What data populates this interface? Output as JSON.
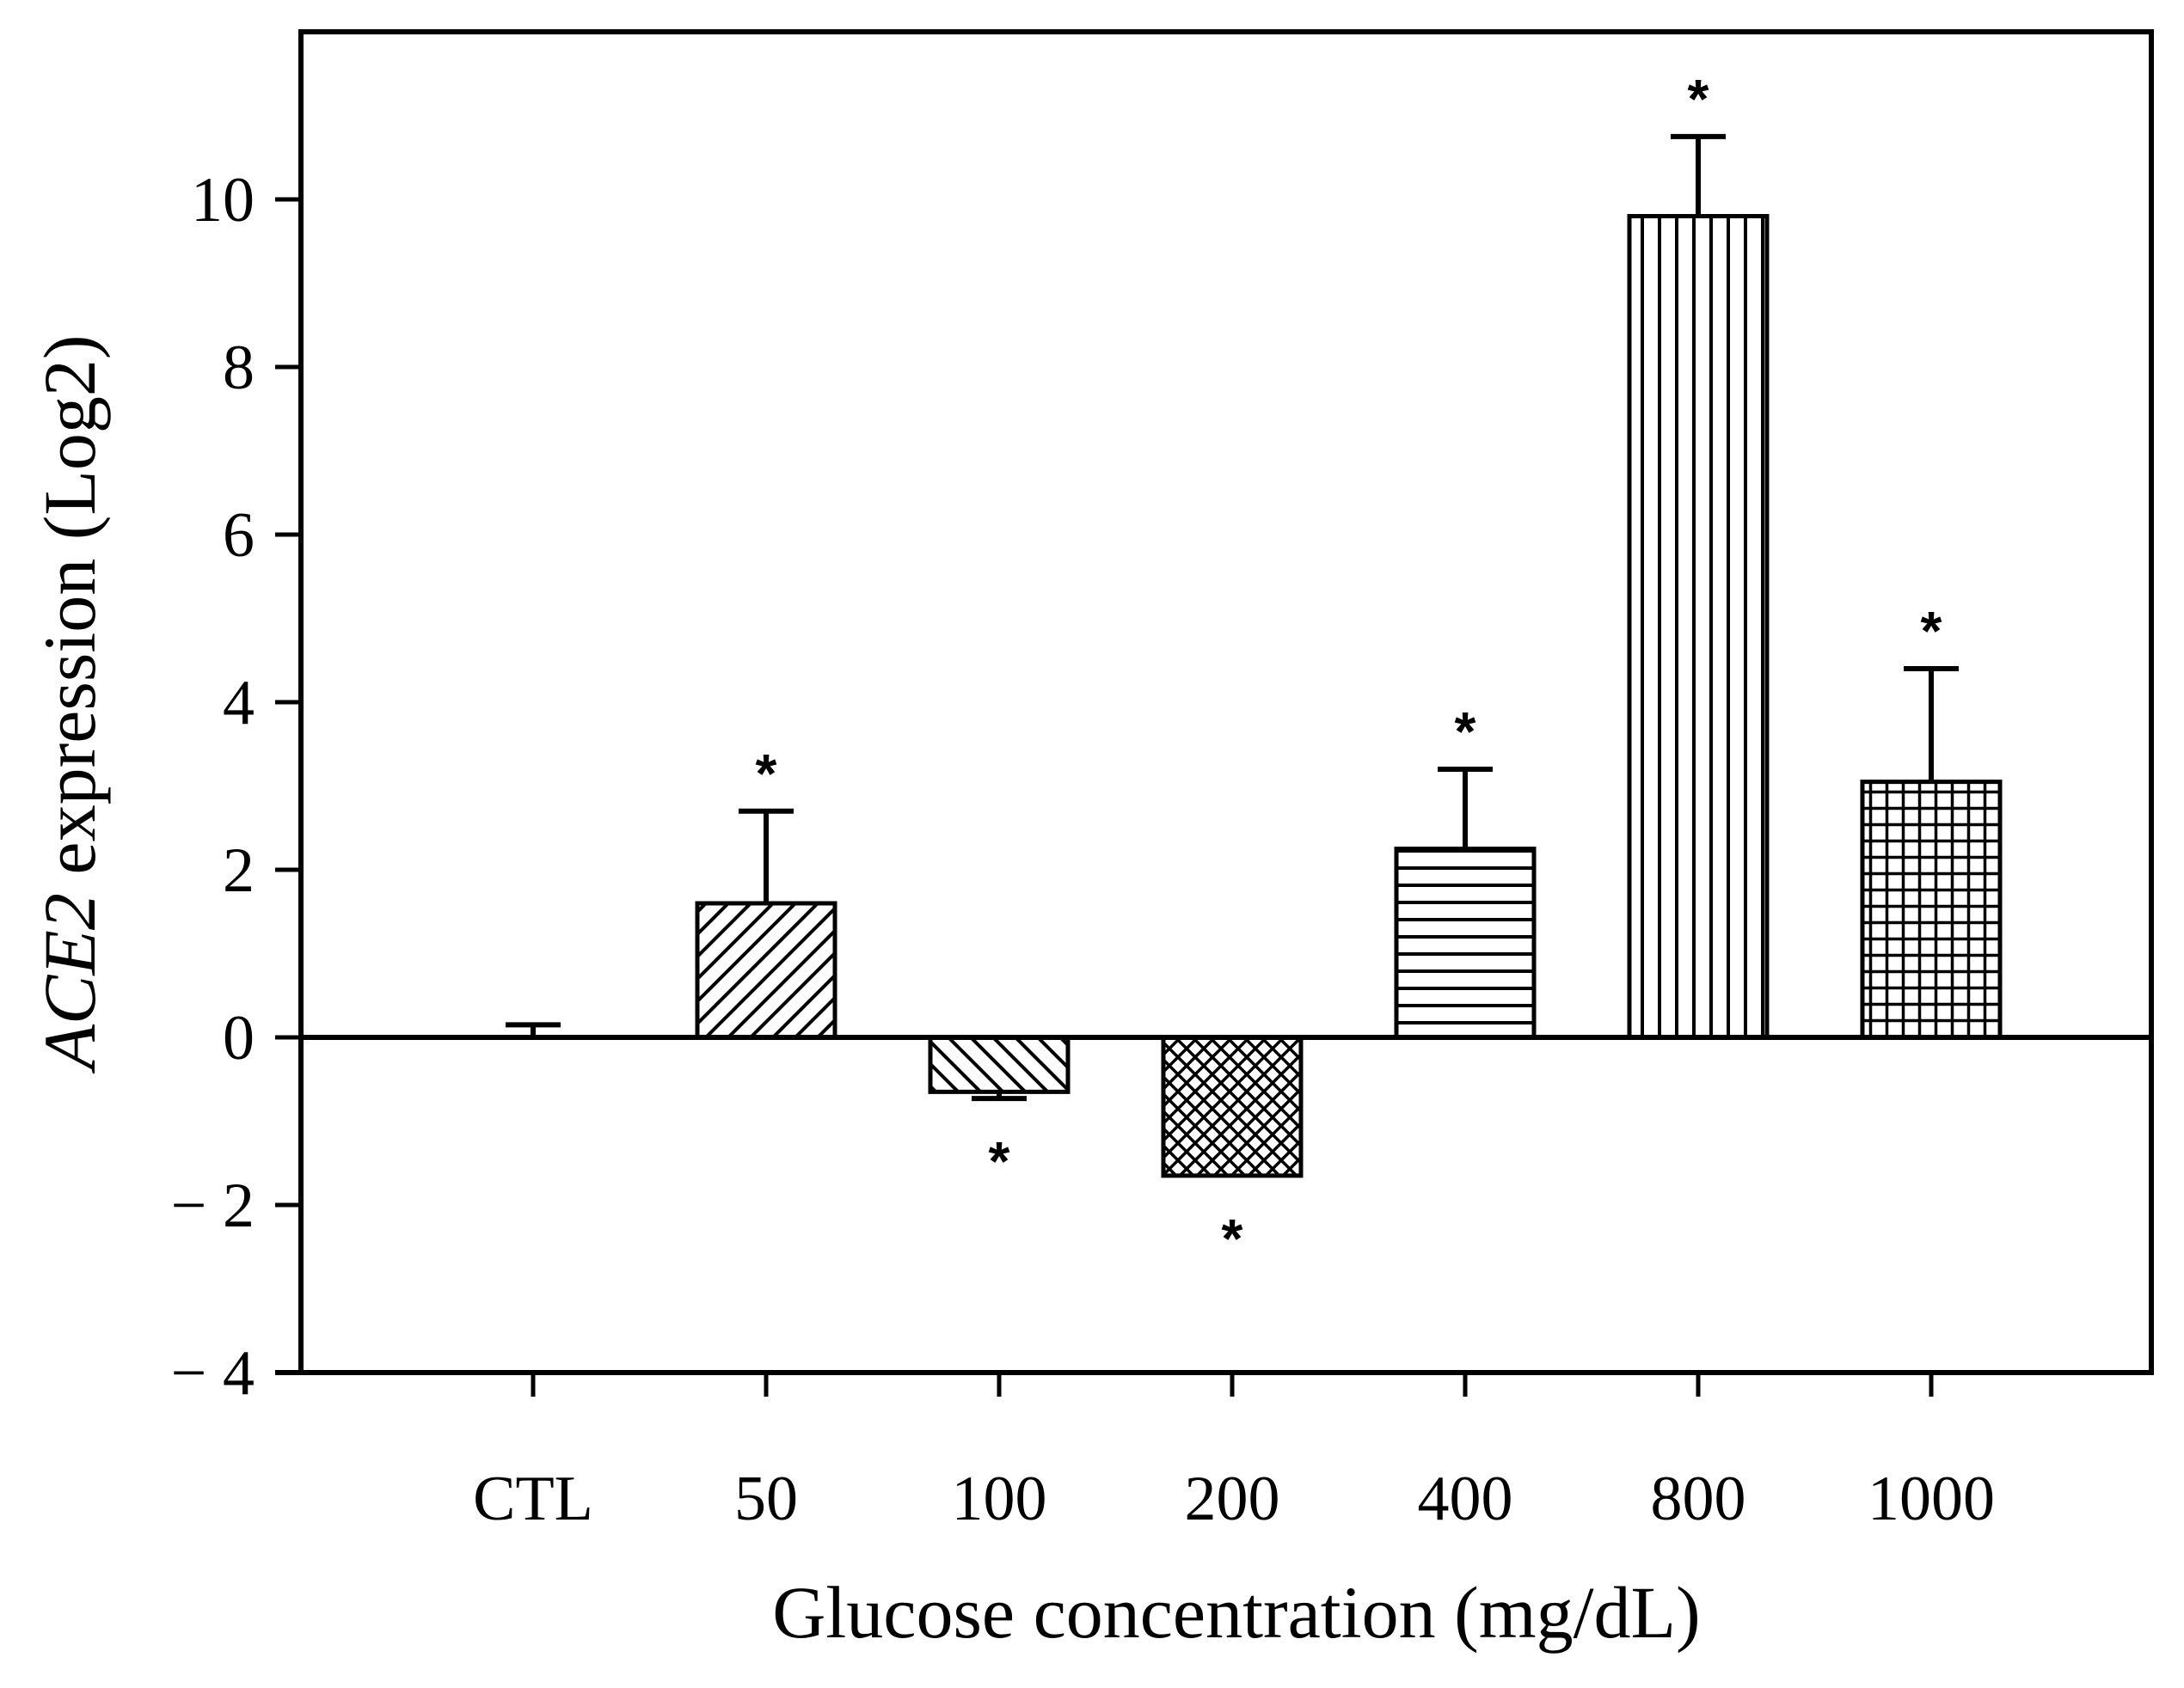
{
  "chart_data": {
    "type": "bar",
    "title": "",
    "xlabel": "Glucose concentration (mg/dL)",
    "ylabel_italic": "ACE2",
    "ylabel_rest": " expression (Log2)",
    "categories": [
      "CTL",
      "50",
      "100",
      "200",
      "400",
      "800",
      "1000"
    ],
    "values": [
      0,
      1.6,
      -0.65,
      -1.65,
      2.25,
      9.8,
      3.05
    ],
    "errors": [
      0.15,
      1.1,
      0.08,
      0,
      0.95,
      0.95,
      1.35
    ],
    "significant": [
      false,
      true,
      true,
      true,
      true,
      true,
      true
    ],
    "significance_marker": "*",
    "patterns": [
      "none",
      "diag-up",
      "diag-down",
      "crosshatch",
      "horizontal",
      "vertical",
      "grid"
    ],
    "ylim": [
      -4,
      12
    ],
    "yticks": [
      -4,
      -2,
      0,
      2,
      4,
      6,
      8,
      10
    ],
    "ytick_labels": [
      "− 4",
      "− 2",
      "0",
      "2",
      "4",
      "6",
      "8",
      "10"
    ],
    "grid": false,
    "legend": "none"
  },
  "colors": {
    "ink": "#000000",
    "background": "#ffffff"
  }
}
